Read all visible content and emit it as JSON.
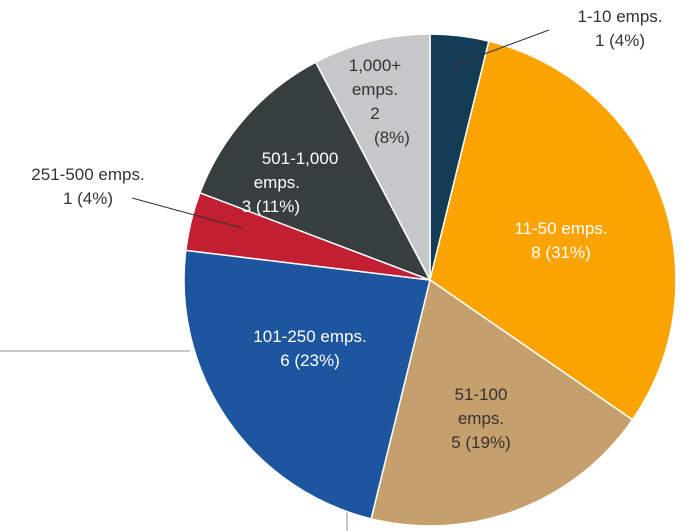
{
  "chart_data": {
    "type": "pie",
    "title": "",
    "slices": [
      {
        "label": "1-10 emps.",
        "value": 1,
        "percent": "4%",
        "color": "#143c55",
        "lines": [
          "1-10 emps.",
          "1 (4%)"
        ]
      },
      {
        "label": "11-50 emps.",
        "value": 8,
        "percent": "31%",
        "color": "#fba300",
        "lines": [
          "11-50 emps.",
          "8 (31%)"
        ]
      },
      {
        "label": "51-100 emps.",
        "value": 5,
        "percent": "19%",
        "color": "#c5a06c",
        "lines": [
          "51-100",
          "emps.",
          "5 (19%)"
        ]
      },
      {
        "label": "101-250 emps.",
        "value": 6,
        "percent": "23%",
        "color": "#1d559f",
        "lines": [
          "101-250 emps.",
          "6 (23%)"
        ]
      },
      {
        "label": "251-500 emps.",
        "value": 1,
        "percent": "4%",
        "color": "#c21f32",
        "lines": [
          "251-500 emps.",
          "1 (4%)"
        ]
      },
      {
        "label": "501-1,000 emps.",
        "value": 3,
        "percent": "11%",
        "color": "#373e3f",
        "lines": [
          "501-1,000",
          "emps.",
          "3 (11%)"
        ]
      },
      {
        "label": "1,000+ emps.",
        "value": 2,
        "percent": "8%",
        "color": "#c6c7c8",
        "lines": [
          "1,000+",
          "emps.",
          "2",
          "(8%)"
        ]
      }
    ]
  }
}
